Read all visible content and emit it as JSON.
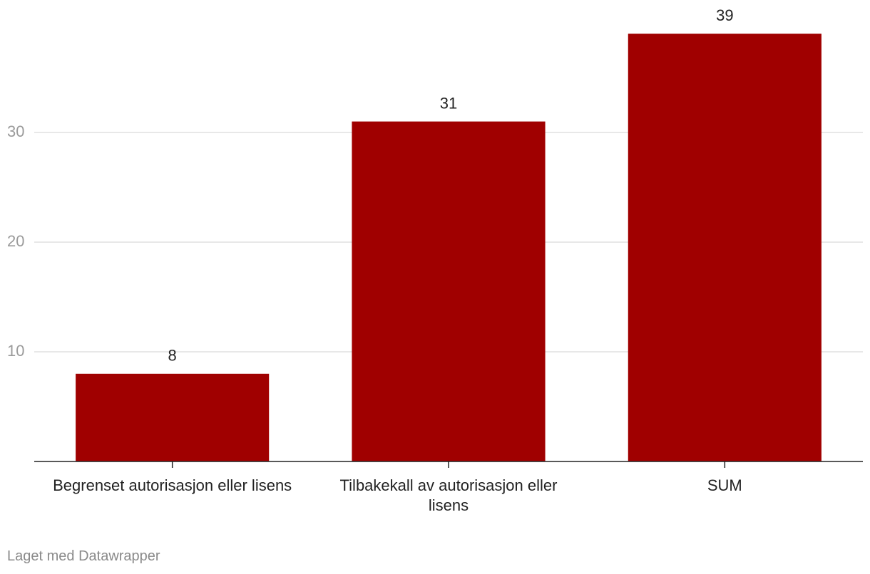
{
  "chart_data": {
    "type": "bar",
    "categories": [
      "Begrenset autorisasjon eller lisens",
      "Tilbakekall av autorisasjon eller lisens",
      "SUM"
    ],
    "values": [
      8,
      31,
      39
    ],
    "color": "#a00000",
    "ylim": [
      0,
      40
    ],
    "yticks": [
      10,
      20,
      30
    ],
    "grid": true,
    "credit": "Laget med Datawrapper"
  }
}
